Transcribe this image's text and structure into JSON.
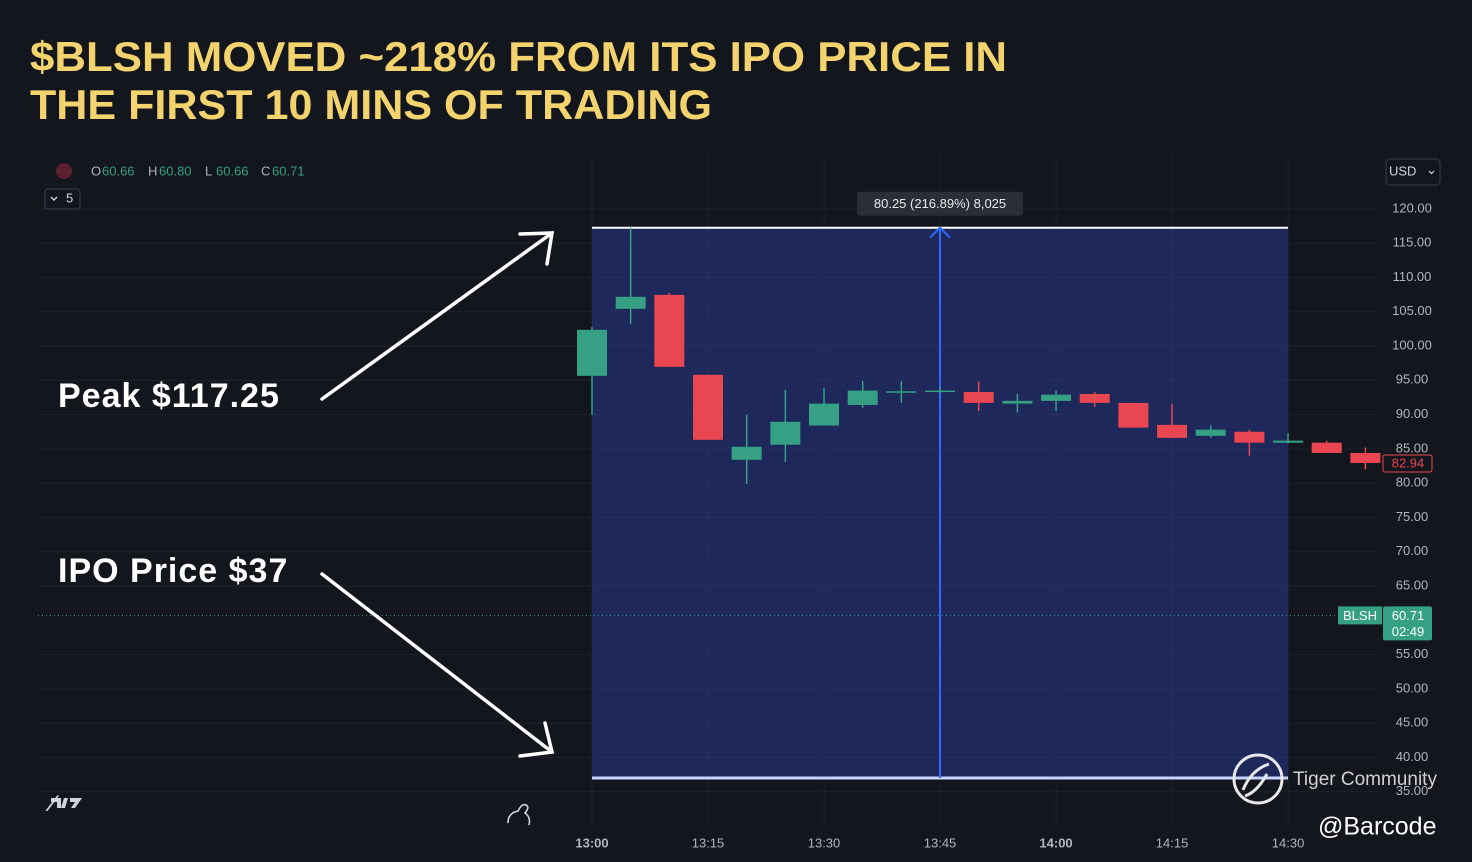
{
  "chart_data": {
    "type": "candlestick",
    "title": [
      "$BLSH MOVED ~218% FROM ITS IPO PRICE IN",
      "THE FIRST 10 MINS OF TRADING"
    ],
    "categories": [
      "13:00",
      null,
      null,
      "13:15",
      null,
      null,
      "13:30",
      null,
      null,
      "13:45",
      null,
      null,
      "14:00",
      null,
      null,
      "14:15",
      null,
      null,
      "14:30",
      null,
      null
    ],
    "open": [
      95.65,
      105.42,
      107.46,
      95.8,
      83.4,
      85.6,
      88.4,
      91.4,
      93.3,
      93.3,
      93.3,
      91.6,
      92.0,
      93.0,
      91.7,
      88.5,
      86.9,
      87.5,
      85.9,
      85.9,
      84.4
    ],
    "high": [
      102.8,
      117.25,
      107.75,
      95.8,
      89.97,
      93.6,
      93.9,
      94.9,
      94.9,
      93.9,
      94.8,
      93.0,
      93.5,
      93.3,
      91.7,
      91.6,
      88.4,
      87.8,
      87.3,
      86.2,
      85.2
    ],
    "low": [
      89.97,
      103.23,
      96.96,
      86.32,
      79.9,
      83.1,
      88.4,
      91.0,
      91.7,
      93.1,
      90.5,
      90.3,
      90.5,
      91.1,
      88.1,
      86.6,
      86.6,
      84.0,
      85.8,
      84.4,
      82.0
    ],
    "close": [
      102.36,
      107.17,
      96.96,
      86.32,
      85.3,
      88.95,
      91.6,
      93.5,
      93.4,
      93.5,
      91.7,
      92.0,
      92.9,
      91.7,
      88.1,
      86.6,
      87.8,
      85.9,
      86.2,
      84.4,
      82.94
    ],
    "up_color": "#35a083",
    "down_color": "#e84650",
    "ylim": [
      30,
      128
    ],
    "yticks": [
      {
        "value": 120,
        "label": "120.00"
      },
      {
        "value": 115,
        "label": "115.00"
      },
      {
        "value": 110,
        "label": "110.00"
      },
      {
        "value": 105,
        "label": "105.00"
      },
      {
        "value": 100,
        "label": "100.00"
      },
      {
        "value": 95,
        "label": "95.00"
      },
      {
        "value": 90,
        "label": "90.00"
      },
      {
        "value": 85,
        "label": "85.00"
      },
      {
        "value": 80,
        "label": "80.00"
      },
      {
        "value": 75,
        "label": "75.00"
      },
      {
        "value": 70,
        "label": "70.00"
      },
      {
        "value": 65,
        "label": "65.00"
      },
      {
        "value": 55,
        "label": "55.00"
      },
      {
        "value": 50,
        "label": "50.00"
      },
      {
        "value": 45,
        "label": "45.00"
      },
      {
        "value": 40,
        "label": "40.00"
      },
      {
        "value": 35,
        "label": "35.00"
      }
    ],
    "grid": true,
    "ohlc_legend": {
      "keys": [
        "O",
        "H",
        "L",
        "C"
      ],
      "values": [
        60.66,
        60.8,
        60.66,
        60.71
      ],
      "value_labels": [
        "60.66",
        "60.80",
        "60.66",
        "60.71"
      ]
    },
    "currency": "USD",
    "interval": "5",
    "last_price": {
      "name": "BLSH",
      "value": 60.71,
      "time": "02:49"
    },
    "measure": {
      "label": "80.25 (216.89%) 8,025",
      "from_time": "13:00",
      "to_time": "14:30",
      "low": 37,
      "high": 117.25
    },
    "annotations": [
      "Peak $117.25",
      "IPO Price $37"
    ],
    "watermark": "Tiger Community",
    "credit": "@Barcode"
  }
}
